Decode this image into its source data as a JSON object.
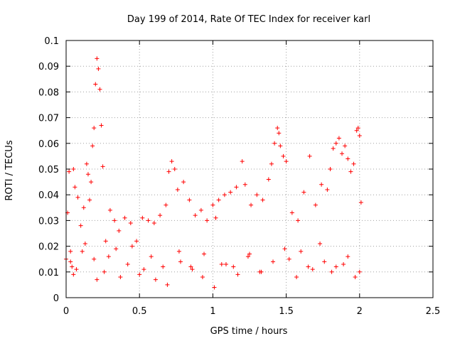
{
  "chart_data": {
    "type": "scatter",
    "title": "Day 199 of 2014, Rate Of TEC Index for receiver karl",
    "xlabel": "GPS time / hours",
    "ylabel": "ROTI / TECUs",
    "xlim": [
      0,
      2.5
    ],
    "ylim": [
      0,
      0.1
    ],
    "xticks": [
      "0",
      "0.5",
      "1",
      "1.5",
      "2",
      "2.5"
    ],
    "yticks": [
      "0",
      "0.01",
      "0.02",
      "0.03",
      "0.04",
      "0.05",
      "0.06",
      "0.07",
      "0.08",
      "0.09",
      "0.1"
    ],
    "grid": true,
    "marker": "plus",
    "color": "#ff0000",
    "series": [
      {
        "name": "ROTI",
        "x": [
          0.0,
          0.01,
          0.02,
          0.03,
          0.04,
          0.05,
          0.06,
          0.08,
          0.1,
          0.12,
          0.14,
          0.15,
          0.16,
          0.17,
          0.18,
          0.19,
          0.2,
          0.21,
          0.22,
          0.23,
          0.24,
          0.25,
          0.27,
          0.3,
          0.33,
          0.36,
          0.4,
          0.44,
          0.48,
          0.52,
          0.56,
          0.6,
          0.64,
          0.68,
          0.7,
          0.72,
          0.74,
          0.76,
          0.8,
          0.84,
          0.88,
          0.92,
          0.96,
          1.0,
          1.02,
          1.04,
          1.08,
          1.12,
          1.16,
          1.2,
          1.22,
          1.26,
          1.3,
          1.34,
          1.38,
          1.4,
          1.42,
          1.44,
          1.45,
          1.46,
          1.48,
          1.5,
          1.54,
          1.58,
          1.62,
          1.66,
          1.7,
          1.74,
          1.78,
          1.8,
          1.82,
          1.84,
          1.86,
          1.88,
          1.9,
          1.92,
          1.94,
          1.96,
          1.98,
          1.99,
          2.0,
          2.01,
          0.03,
          0.07,
          0.11,
          0.19,
          0.26,
          0.34,
          0.42,
          0.5,
          0.58,
          0.66,
          0.78,
          0.86,
          0.94,
          1.06,
          1.14,
          1.24,
          1.32,
          1.52,
          1.6,
          1.68,
          1.76,
          1.84,
          1.92,
          2.0,
          0.05,
          0.13,
          0.21,
          0.29,
          0.37,
          0.45,
          0.53,
          0.61,
          0.69,
          0.77,
          0.85,
          0.93,
          1.01,
          1.09,
          1.17,
          1.25,
          1.33,
          1.41,
          1.49,
          1.57,
          1.65,
          1.73,
          1.81,
          1.89,
          1.97
        ],
        "y": [
          0.015,
          0.033,
          0.049,
          0.018,
          0.012,
          0.05,
          0.043,
          0.039,
          0.028,
          0.035,
          0.052,
          0.048,
          0.038,
          0.045,
          0.059,
          0.066,
          0.083,
          0.093,
          0.089,
          0.081,
          0.067,
          0.051,
          0.022,
          0.034,
          0.03,
          0.026,
          0.031,
          0.029,
          0.022,
          0.031,
          0.03,
          0.029,
          0.032,
          0.036,
          0.049,
          0.053,
          0.05,
          0.042,
          0.045,
          0.038,
          0.032,
          0.034,
          0.03,
          0.036,
          0.031,
          0.038,
          0.04,
          0.041,
          0.043,
          0.053,
          0.044,
          0.036,
          0.04,
          0.038,
          0.046,
          0.052,
          0.06,
          0.066,
          0.064,
          0.059,
          0.055,
          0.053,
          0.033,
          0.03,
          0.041,
          0.055,
          0.036,
          0.044,
          0.042,
          0.05,
          0.058,
          0.06,
          0.062,
          0.056,
          0.059,
          0.054,
          0.049,
          0.052,
          0.065,
          0.066,
          0.063,
          0.037,
          0.014,
          0.011,
          0.018,
          0.015,
          0.01,
          0.019,
          0.013,
          0.009,
          0.016,
          0.012,
          0.014,
          0.011,
          0.017,
          0.013,
          0.012,
          0.016,
          0.01,
          0.015,
          0.018,
          0.011,
          0.014,
          0.012,
          0.016,
          0.01,
          0.009,
          0.021,
          0.007,
          0.016,
          0.008,
          0.02,
          0.011,
          0.007,
          0.005,
          0.018,
          0.012,
          0.008,
          0.004,
          0.013,
          0.009,
          0.017,
          0.01,
          0.014,
          0.019,
          0.008,
          0.012,
          0.021,
          0.01,
          0.013,
          0.008
        ]
      }
    ]
  }
}
